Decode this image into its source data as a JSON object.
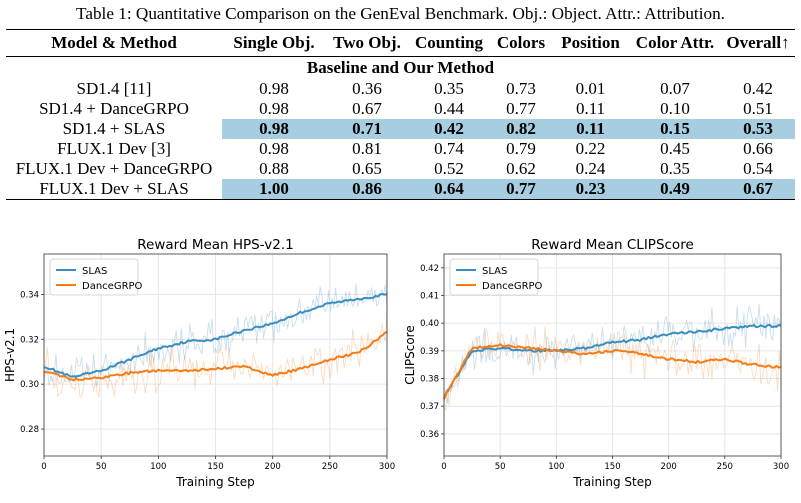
{
  "caption": "Table 1: Quantitative Comparison on the GenEval Benchmark. Obj.: Object. Attr.: Attribution.",
  "table": {
    "headers": [
      "Model & Method",
      "Single Obj.",
      "Two Obj.",
      "Counting",
      "Colors",
      "Position",
      "Color Attr.",
      "Overall↑"
    ],
    "section": "Baseline and Our Method",
    "rows": [
      {
        "model": "SD1.4 [11]",
        "values": [
          "0.98",
          "0.36",
          "0.35",
          "0.73",
          "0.01",
          "0.07",
          "0.42"
        ],
        "highlight": false
      },
      {
        "model": "SD1.4 + DanceGRPO",
        "values": [
          "0.98",
          "0.67",
          "0.44",
          "0.77",
          "0.11",
          "0.10",
          "0.51"
        ],
        "highlight": false
      },
      {
        "model": "SD1.4 + SLAS",
        "values": [
          "0.98",
          "0.71",
          "0.42",
          "0.82",
          "0.11",
          "0.15",
          "0.53"
        ],
        "highlight": true
      },
      {
        "model": "FLUX.1 Dev [3]",
        "values": [
          "0.98",
          "0.81",
          "0.74",
          "0.79",
          "0.22",
          "0.45",
          "0.66"
        ],
        "highlight": false
      },
      {
        "model": "FLUX.1 Dev + DanceGRPO",
        "values": [
          "0.88",
          "0.65",
          "0.52",
          "0.62",
          "0.24",
          "0.35",
          "0.54"
        ],
        "highlight": false
      },
      {
        "model": "FLUX.1 Dev + SLAS",
        "values": [
          "1.00",
          "0.86",
          "0.64",
          "0.77",
          "0.23",
          "0.49",
          "0.67"
        ],
        "highlight": true
      }
    ],
    "highlight_color": "#a7cde0"
  },
  "chart_data": [
    {
      "type": "line",
      "title": "Reward Mean HPS-v2.1",
      "xlabel": "Training Step",
      "ylabel": "HPS-v2.1",
      "xlim": [
        0,
        300
      ],
      "ylim": [
        0.268,
        0.358
      ],
      "xticks": [
        0,
        50,
        100,
        150,
        200,
        250,
        300
      ],
      "yticks": [
        0.28,
        0.3,
        0.32,
        0.34
      ],
      "ytick_labels": [
        "0.28",
        "0.30",
        "0.32",
        "0.34"
      ],
      "grid": true,
      "legend_position": "top-left",
      "x": [
        0,
        25,
        50,
        75,
        100,
        125,
        150,
        175,
        200,
        225,
        250,
        275,
        300
      ],
      "series": [
        {
          "name": "SLAS",
          "color": "#3a8dbf",
          "values": [
            0.308,
            0.303,
            0.306,
            0.311,
            0.316,
            0.319,
            0.32,
            0.324,
            0.327,
            0.332,
            0.336,
            0.338,
            0.34
          ]
        },
        {
          "name": "DanceGRPO",
          "color": "#f57c16",
          "values": [
            0.306,
            0.302,
            0.303,
            0.305,
            0.306,
            0.306,
            0.307,
            0.308,
            0.304,
            0.307,
            0.311,
            0.314,
            0.323
          ]
        }
      ]
    },
    {
      "type": "line",
      "title": "Reward Mean CLIPScore",
      "xlabel": "Training Step",
      "ylabel": "CLIPScore",
      "xlim": [
        0,
        300
      ],
      "ylim": [
        0.352,
        0.425
      ],
      "xticks": [
        0,
        50,
        100,
        150,
        200,
        250,
        300
      ],
      "yticks": [
        0.36,
        0.37,
        0.38,
        0.39,
        0.4,
        0.41,
        0.42
      ],
      "ytick_labels": [
        "0.36",
        "0.37",
        "0.38",
        "0.39",
        "0.40",
        "0.41",
        "0.42"
      ],
      "grid": true,
      "legend_position": "top-left",
      "x": [
        0,
        25,
        50,
        75,
        100,
        125,
        150,
        175,
        200,
        225,
        250,
        275,
        300
      ],
      "series": [
        {
          "name": "SLAS",
          "color": "#3a8dbf",
          "values": [
            0.373,
            0.39,
            0.391,
            0.39,
            0.39,
            0.391,
            0.393,
            0.394,
            0.396,
            0.397,
            0.398,
            0.399,
            0.399
          ]
        },
        {
          "name": "DanceGRPO",
          "color": "#f57c16",
          "values": [
            0.373,
            0.391,
            0.392,
            0.391,
            0.39,
            0.389,
            0.39,
            0.389,
            0.387,
            0.386,
            0.387,
            0.385,
            0.384
          ]
        }
      ]
    }
  ]
}
